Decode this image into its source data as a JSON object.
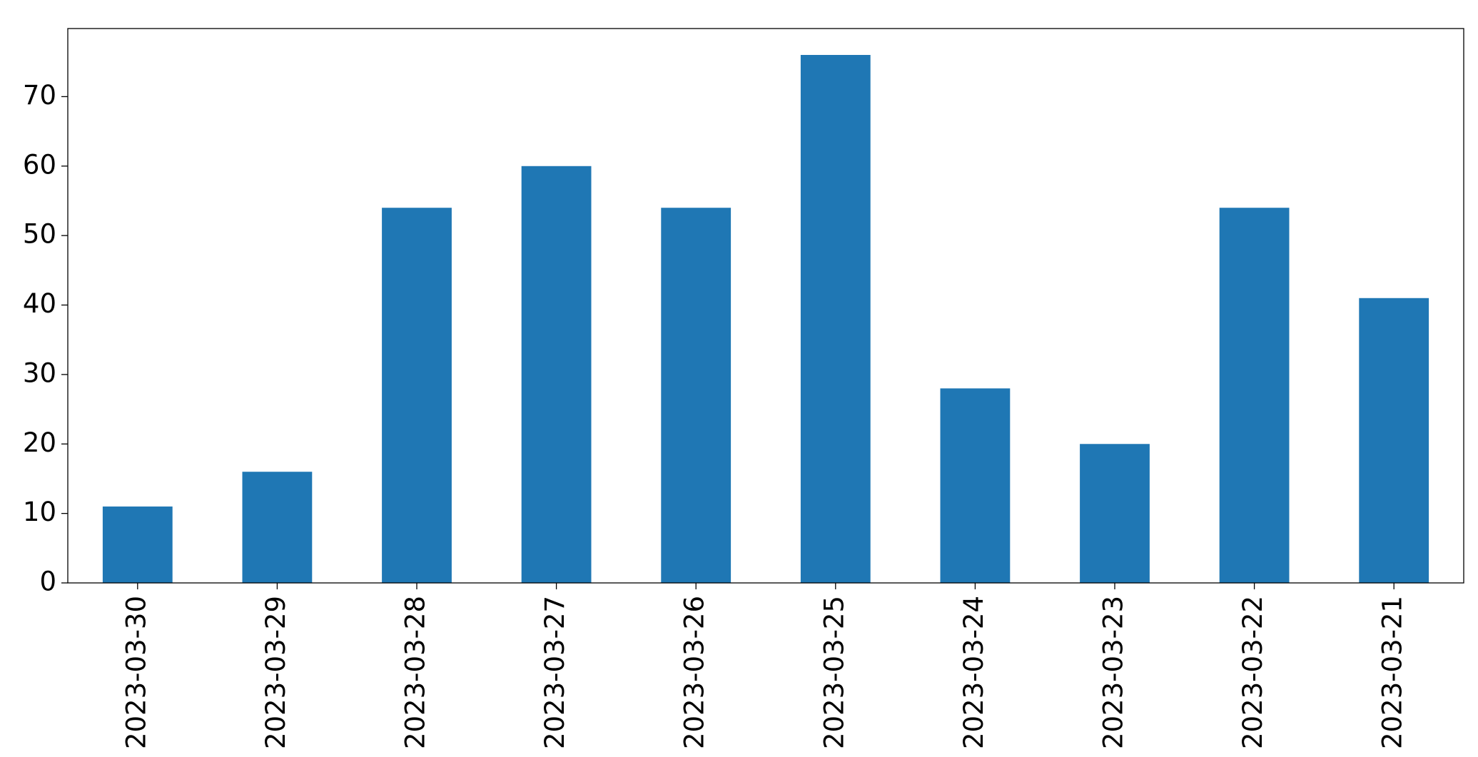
{
  "chart_data": {
    "type": "bar",
    "categories": [
      "2023-03-30",
      "2023-03-29",
      "2023-03-28",
      "2023-03-27",
      "2023-03-26",
      "2023-03-25",
      "2023-03-24",
      "2023-03-23",
      "2023-03-22",
      "2023-03-21"
    ],
    "values": [
      11,
      16,
      54,
      60,
      54,
      76,
      28,
      20,
      54,
      41
    ],
    "color": "#1f77b4",
    "ylim": [
      0,
      79.8
    ],
    "yticks": [
      0,
      10,
      20,
      30,
      40,
      50,
      60,
      70
    ],
    "grid": false
  }
}
